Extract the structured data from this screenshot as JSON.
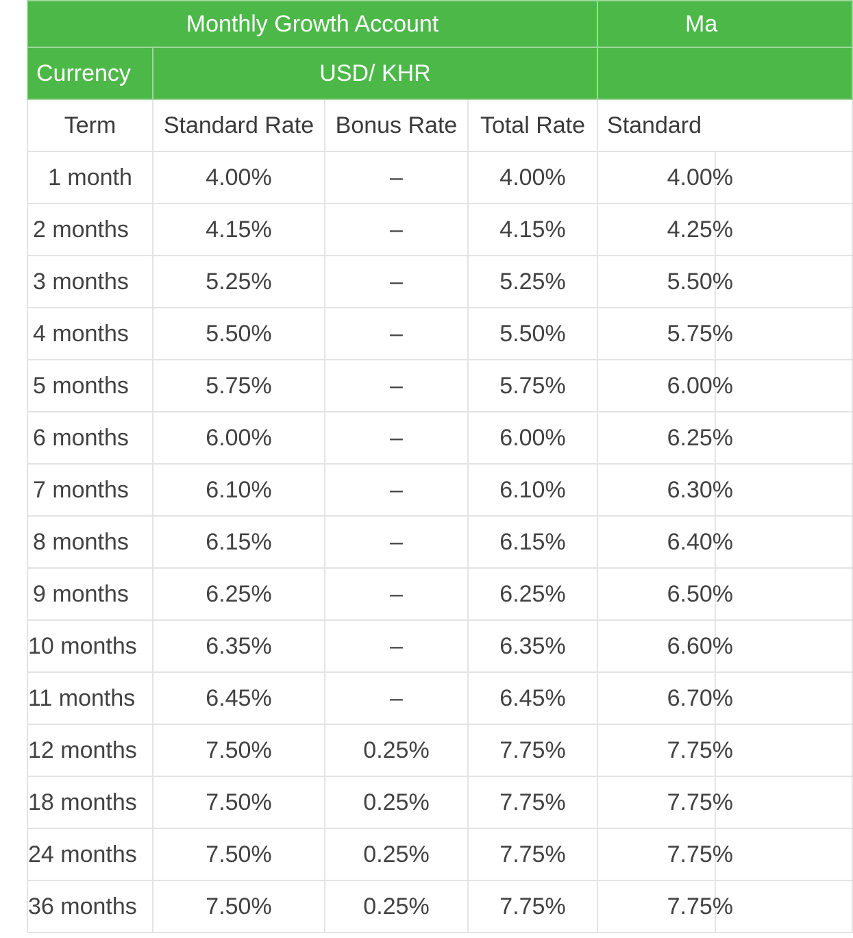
{
  "table": {
    "group_headers": {
      "product": "Monthly Growth Account",
      "next_product_partial": "Ma"
    },
    "currency_row": {
      "label": "Currency",
      "value": "USD/ KHR"
    },
    "columns": {
      "term": "Term",
      "standard_rate": "Standard Rate",
      "bonus_rate": "Bonus Rate",
      "total_rate": "Total Rate",
      "next_standard": "Standard"
    },
    "rows": [
      {
        "term": "1 month",
        "standard": "4.00%",
        "bonus": "–",
        "total": "4.00%",
        "next_standard": "4.00%"
      },
      {
        "term": "2 months",
        "standard": "4.15%",
        "bonus": "–",
        "total": "4.15%",
        "next_standard": "4.25%"
      },
      {
        "term": "3 months",
        "standard": "5.25%",
        "bonus": "–",
        "total": "5.25%",
        "next_standard": "5.50%"
      },
      {
        "term": "4 months",
        "standard": "5.50%",
        "bonus": "–",
        "total": "5.50%",
        "next_standard": "5.75%"
      },
      {
        "term": "5 months",
        "standard": "5.75%",
        "bonus": "–",
        "total": "5.75%",
        "next_standard": "6.00%"
      },
      {
        "term": "6 months",
        "standard": "6.00%",
        "bonus": "–",
        "total": "6.00%",
        "next_standard": "6.25%"
      },
      {
        "term": "7 months",
        "standard": "6.10%",
        "bonus": "–",
        "total": "6.10%",
        "next_standard": "6.30%"
      },
      {
        "term": "8 months",
        "standard": "6.15%",
        "bonus": "–",
        "total": "6.15%",
        "next_standard": "6.40%"
      },
      {
        "term": "9 months",
        "standard": "6.25%",
        "bonus": "–",
        "total": "6.25%",
        "next_standard": "6.50%"
      },
      {
        "term": "10 months",
        "standard": "6.35%",
        "bonus": "–",
        "total": "6.35%",
        "next_standard": "6.60%"
      },
      {
        "term": "11 months",
        "standard": "6.45%",
        "bonus": "–",
        "total": "6.45%",
        "next_standard": "6.70%"
      },
      {
        "term": "12 months",
        "standard": "7.50%",
        "bonus": "0.25%",
        "total": "7.75%",
        "next_standard": "7.75%"
      },
      {
        "term": "18 months",
        "standard": "7.50%",
        "bonus": "0.25%",
        "total": "7.75%",
        "next_standard": "7.75%"
      },
      {
        "term": "24 months",
        "standard": "7.50%",
        "bonus": "0.25%",
        "total": "7.75%",
        "next_standard": "7.75%"
      },
      {
        "term": "36 months",
        "standard": "7.50%",
        "bonus": "0.25%",
        "total": "7.75%",
        "next_standard": "7.75%"
      }
    ]
  },
  "colors": {
    "header_green": "#4cb848",
    "header_text": "#ffffff",
    "grid_line": "#e3e3e3",
    "body_text": "#424242"
  }
}
